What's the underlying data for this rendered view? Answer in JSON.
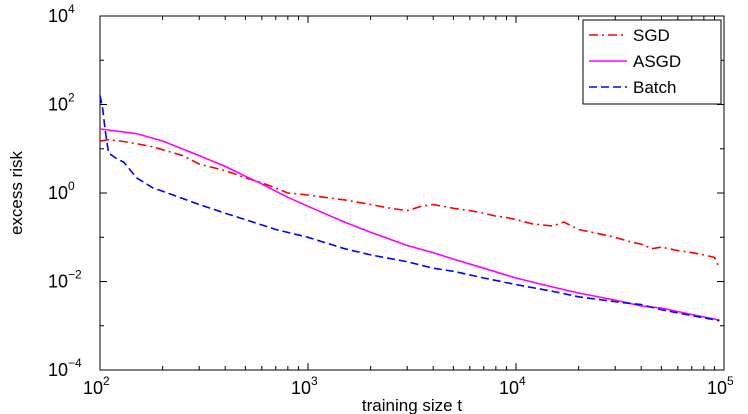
{
  "chart_data": {
    "type": "line",
    "xscale": "log",
    "yscale": "log",
    "xlim": [
      100,
      100000
    ],
    "ylim": [
      0.0001,
      10000
    ],
    "xlabel": "training size t",
    "ylabel": "excess risk",
    "x_ticks": [
      {
        "base": "10",
        "exp": "2",
        "value": 100
      },
      {
        "base": "10",
        "exp": "3",
        "value": 1000
      },
      {
        "base": "10",
        "exp": "4",
        "value": 10000
      },
      {
        "base": "10",
        "exp": "5",
        "value": 100000
      }
    ],
    "y_ticks": [
      {
        "base": "10",
        "exp": "−4",
        "value": 0.0001
      },
      {
        "base": "10",
        "exp": "−2",
        "value": 0.01
      },
      {
        "base": "10",
        "exp": "0",
        "value": 1
      },
      {
        "base": "10",
        "exp": "2",
        "value": 100
      },
      {
        "base": "10",
        "exp": "4",
        "value": 10000
      }
    ],
    "grid": false,
    "legend_position": "top-right",
    "series": [
      {
        "name": "SGD",
        "color": "#ff0000",
        "style": "dash-dot",
        "points": [
          [
            100,
            15
          ],
          [
            110,
            16
          ],
          [
            125,
            15
          ],
          [
            150,
            13
          ],
          [
            180,
            11
          ],
          [
            200,
            9.5
          ],
          [
            250,
            7
          ],
          [
            300,
            4.5
          ],
          [
            400,
            3.2
          ],
          [
            500,
            2.2
          ],
          [
            600,
            1.7
          ],
          [
            700,
            1.3
          ],
          [
            800,
            1.0
          ],
          [
            900,
            0.95
          ],
          [
            1000,
            0.9
          ],
          [
            1200,
            0.8
          ],
          [
            1500,
            0.7
          ],
          [
            2000,
            0.55
          ],
          [
            2500,
            0.45
          ],
          [
            3000,
            0.4
          ],
          [
            3500,
            0.5
          ],
          [
            4000,
            0.55
          ],
          [
            5000,
            0.45
          ],
          [
            6000,
            0.4
          ],
          [
            7000,
            0.35
          ],
          [
            8000,
            0.3
          ],
          [
            9000,
            0.28
          ],
          [
            10000,
            0.25
          ],
          [
            12000,
            0.2
          ],
          [
            15000,
            0.18
          ],
          [
            17000,
            0.22
          ],
          [
            20000,
            0.15
          ],
          [
            25000,
            0.12
          ],
          [
            30000,
            0.1
          ],
          [
            35000,
            0.08
          ],
          [
            40000,
            0.07
          ],
          [
            45000,
            0.055
          ],
          [
            50000,
            0.06
          ],
          [
            60000,
            0.05
          ],
          [
            70000,
            0.045
          ],
          [
            80000,
            0.04
          ],
          [
            90000,
            0.035
          ],
          [
            95000,
            0.02
          ]
        ]
      },
      {
        "name": "ASGD",
        "color": "#ff00ff",
        "style": "solid",
        "points": [
          [
            100,
            28
          ],
          [
            150,
            22
          ],
          [
            200,
            15
          ],
          [
            300,
            7
          ],
          [
            400,
            4
          ],
          [
            500,
            2.4
          ],
          [
            600,
            1.6
          ],
          [
            700,
            1.1
          ],
          [
            800,
            0.8
          ],
          [
            1000,
            0.5
          ],
          [
            1500,
            0.22
          ],
          [
            2000,
            0.13
          ],
          [
            3000,
            0.065
          ],
          [
            4000,
            0.045
          ],
          [
            5000,
            0.032
          ],
          [
            7000,
            0.02
          ],
          [
            10000,
            0.012
          ],
          [
            15000,
            0.0075
          ],
          [
            20000,
            0.0055
          ],
          [
            30000,
            0.0038
          ],
          [
            40000,
            0.0028
          ],
          [
            50000,
            0.0025
          ],
          [
            70000,
            0.0018
          ],
          [
            95000,
            0.00135
          ]
        ]
      },
      {
        "name": "Batch",
        "color": "#0000ff",
        "style": "dashed",
        "points": [
          [
            100,
            160
          ],
          [
            103,
            80
          ],
          [
            106,
            25
          ],
          [
            110,
            8
          ],
          [
            120,
            6
          ],
          [
            130,
            5
          ],
          [
            150,
            2.2
          ],
          [
            180,
            1.3
          ],
          [
            200,
            1.1
          ],
          [
            250,
            0.75
          ],
          [
            300,
            0.55
          ],
          [
            400,
            0.35
          ],
          [
            500,
            0.25
          ],
          [
            700,
            0.15
          ],
          [
            1000,
            0.1
          ],
          [
            1500,
            0.055
          ],
          [
            2000,
            0.04
          ],
          [
            3000,
            0.028
          ],
          [
            4000,
            0.02
          ],
          [
            5000,
            0.017
          ],
          [
            7000,
            0.012
          ],
          [
            10000,
            0.0085
          ],
          [
            15000,
            0.006
          ],
          [
            20000,
            0.0045
          ],
          [
            30000,
            0.0035
          ],
          [
            40000,
            0.003
          ],
          [
            50000,
            0.0023
          ],
          [
            70000,
            0.0017
          ],
          [
            95000,
            0.0013
          ]
        ]
      }
    ]
  }
}
